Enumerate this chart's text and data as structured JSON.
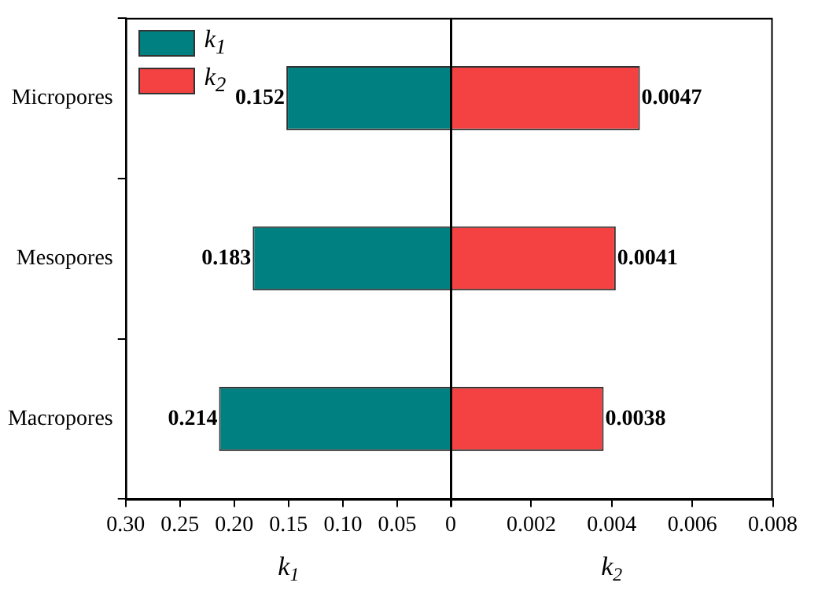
{
  "chart_data": [
    {
      "type": "bar",
      "orientation": "horizontal",
      "categories": [
        "Micropores",
        "Mesopores",
        "Macropores"
      ],
      "series": [
        {
          "name": "k$_{1}$",
          "color": "#008080",
          "values": [
            0.152,
            0.183,
            0.214
          ]
        }
      ],
      "xlabel": "k$_{1}$",
      "xlim": [
        0.3,
        0
      ],
      "xticks": [
        {
          "value": 0.3,
          "label": "0.30"
        },
        0.25,
        {
          "value": 0.2,
          "label": "0.20"
        },
        0.15,
        {
          "value": 0.1,
          "label": "0.10"
        },
        0.05,
        {
          "value": 0,
          "label": null
        }
      ],
      "data_labels": true,
      "legend": "top left",
      "grid": false
    },
    {
      "type": "bar",
      "orientation": "horizontal",
      "categories": [
        null,
        null,
        null
      ],
      "series": [
        {
          "name": "k$_{2}$",
          "color": "#f44242",
          "values": [
            0.0047,
            0.0041,
            0.0038
          ]
        }
      ],
      "xlabel": "k$_{2}$",
      "xlim": [
        0,
        0.008
      ],
      "xticks": [
        0,
        0.002,
        0.004,
        0.006,
        0.008
      ],
      "tick_labels": "x",
      "data_labels": true,
      "legend": "top left",
      "grid": false
    }
  ]
}
